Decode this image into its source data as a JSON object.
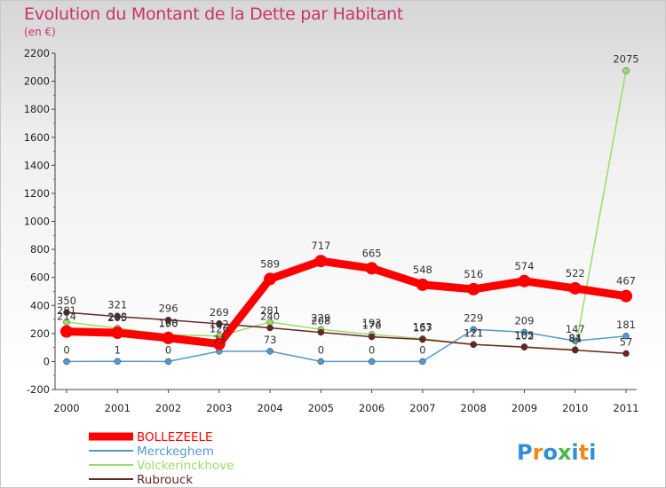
{
  "chart_data": {
    "type": "line",
    "title": "Evolution du Montant de la Dette par Habitant",
    "subtitle": "(en €)",
    "x": [
      "2000",
      "2001",
      "2002",
      "2003",
      "2004",
      "2005",
      "2006",
      "2007",
      "2008",
      "2009",
      "2010",
      "2011"
    ],
    "ylim": [
      -200,
      2200
    ],
    "yticks": [
      "-200",
      "0",
      "200",
      "400",
      "600",
      "800",
      "1000",
      "1200",
      "1400",
      "1600",
      "1800",
      "2000",
      "2200"
    ],
    "grid": false,
    "legend_position": "bottom-left",
    "series": [
      {
        "name": "BOLLEZEELE",
        "color": "#ff0000",
        "values": [
          214,
          205,
          168,
          126,
          589,
          717,
          665,
          548,
          516,
          574,
          522,
          467
        ]
      },
      {
        "name": "Merckeghem",
        "color": "#5599cc",
        "values": [
          0,
          1,
          0,
          73,
          73,
          0,
          0,
          0,
          229,
          209,
          147,
          181
        ]
      },
      {
        "name": "Volckerinckhove",
        "color": "#99dd66",
        "values": [
          281,
          238,
          190,
          182,
          281,
          229,
          193,
          163,
          121,
          105,
          84,
          2075
        ]
      },
      {
        "name": "Rubrouck",
        "color": "#6b2424",
        "values": [
          350,
          321,
          296,
          269,
          240,
          208,
          176,
          157,
          121,
          102,
          81,
          57
        ]
      }
    ]
  },
  "brand": {
    "logo_letters": [
      "P",
      "r",
      "o",
      "x",
      "i",
      "t",
      "i"
    ],
    "logo_colors": [
      "#2f8fd8",
      "#f08a1c",
      "#2f8fd8",
      "#4ab84a",
      "#2f8fd8",
      "#f08a1c",
      "#2f8fd8"
    ]
  }
}
